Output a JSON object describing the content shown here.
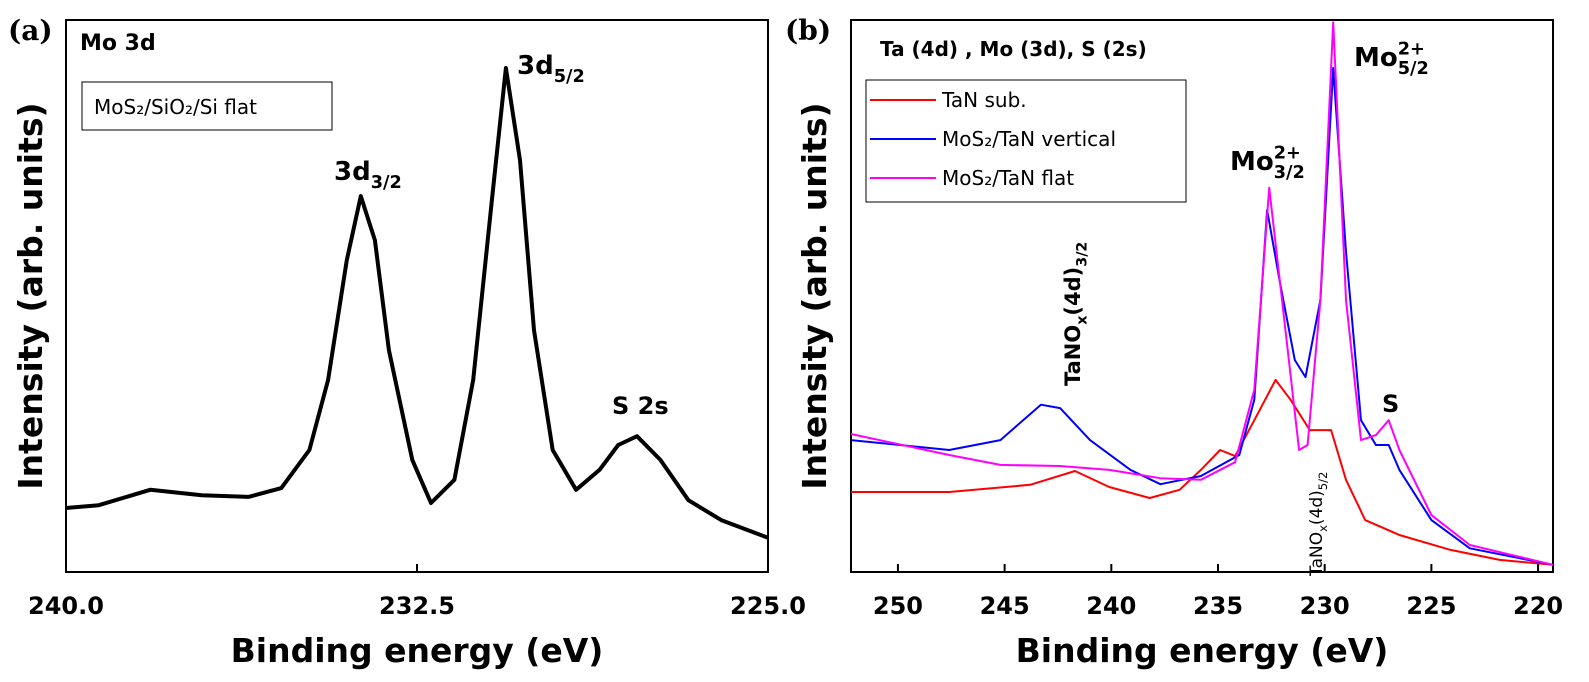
{
  "chart_data": [
    {
      "type": "line",
      "panel_label": "(a)",
      "title": "Mo 3d",
      "xlabel": "Binding energy (eV)",
      "ylabel": "Intensity (arb. units)",
      "xlim": [
        240,
        225
      ],
      "ylim": [
        0,
        100
      ],
      "xticks": [
        {
          "value": 240,
          "label": "240.0"
        },
        {
          "value": 232.5,
          "label": "232.5"
        },
        {
          "value": 225,
          "label": "225.0"
        }
      ],
      "x": [
        240,
        239.3,
        238.2,
        237.1,
        236.1,
        235.4,
        234.8,
        234.4,
        234.0,
        233.7,
        233.4,
        233.1,
        232.6,
        232.2,
        231.7,
        231.3,
        230.9,
        230.6,
        230.3,
        230.0,
        229.6,
        229.1,
        228.6,
        228.2,
        227.8,
        227.3,
        226.7,
        226.0,
        225.0
      ],
      "series": [
        {
          "name": "MoS₂/SiO₂/Si flat",
          "color": "#000000",
          "values": [
            11.6,
            12.1,
            14.9,
            13.9,
            13.6,
            15.2,
            22.1,
            34.8,
            56.5,
            68.1,
            60.1,
            40.2,
            20.3,
            12.5,
            16.7,
            34.8,
            67.4,
            91.3,
            74.6,
            43.8,
            22.1,
            14.9,
            18.5,
            23.0,
            24.6,
            20.3,
            13.0,
            9.4,
            6.2
          ]
        }
      ],
      "annotations": [
        {
          "parts": [
            {
              "text": "3d"
            },
            {
              "text": "3/2",
              "shift": "sub"
            }
          ]
        },
        {
          "parts": [
            {
              "text": "3d"
            },
            {
              "text": "5/2",
              "shift": "sub"
            }
          ]
        },
        {
          "parts": [
            {
              "text": "S 2s"
            }
          ]
        }
      ]
    },
    {
      "type": "line",
      "panel_label": "(b)",
      "title": "Ta (4d) , Mo (3d), S (2s)",
      "xlabel": "Binding energy (eV)",
      "ylabel": "Intensity (arb. units)",
      "xlim": [
        252.2,
        219.3
      ],
      "ylim": [
        0,
        100
      ],
      "xticks": [
        250,
        245,
        240,
        235,
        230,
        225,
        220
      ],
      "series": [
        {
          "name": "TaN sub.",
          "color": "#ff0000",
          "x": [
            252.2,
            247.6,
            243.8,
            241.7,
            240.1,
            238.2,
            236.8,
            235.8,
            234.9,
            234.2,
            233.3,
            232.3,
            231.6,
            230.7,
            229.7,
            229.0,
            228.1,
            226.5,
            224.1,
            221.8,
            219.3
          ],
          "values": [
            14.5,
            14.5,
            15.8,
            18.3,
            15.4,
            13.4,
            14.9,
            18.5,
            22.1,
            21.0,
            27.5,
            34.8,
            31.2,
            25.7,
            25.7,
            16.7,
            9.4,
            6.7,
            4.0,
            2.2,
            1.3
          ]
        },
        {
          "name": "MoS₂/TaN vertical",
          "color": "#0000ff",
          "x": [
            252.2,
            247.6,
            245.2,
            243.3,
            242.4,
            241.0,
            239.1,
            237.7,
            235.8,
            234.0,
            233.3,
            232.7,
            232.1,
            231.4,
            230.9,
            230.2,
            229.6,
            229.0,
            228.3,
            227.6,
            227.0,
            226.5,
            225.0,
            223.2,
            219.3
          ],
          "values": [
            23.9,
            22.1,
            23.9,
            30.3,
            29.7,
            23.9,
            18.5,
            15.9,
            17.4,
            21.2,
            31.2,
            65.6,
            52.5,
            38.4,
            35.3,
            49.3,
            91.3,
            58.0,
            27.5,
            23.0,
            23.0,
            18.5,
            9.4,
            4.3,
            1.3
          ]
        },
        {
          "name": "MoS₂/TaN flat",
          "color": "#ff00ff",
          "x": [
            252.2,
            247.6,
            245.2,
            242.4,
            240.1,
            237.7,
            235.8,
            234.2,
            233.3,
            232.6,
            232.0,
            231.2,
            230.8,
            230.2,
            229.6,
            229.0,
            228.3,
            227.6,
            227.0,
            226.5,
            225.0,
            223.2,
            219.3
          ],
          "values": [
            25.0,
            21.2,
            19.4,
            19.2,
            18.5,
            17.0,
            16.7,
            19.9,
            33.0,
            69.6,
            49.3,
            22.1,
            23.0,
            49.3,
            99.6,
            49.3,
            23.9,
            24.8,
            27.5,
            22.1,
            10.3,
            4.9,
            1.3
          ]
        }
      ],
      "annotations": [
        {
          "parts": [
            {
              "text": "TaNO"
            },
            {
              "text": "x",
              "shift": "sub"
            },
            {
              "text": "(4d)"
            },
            {
              "text": "3/2",
              "shift": "sub"
            }
          ]
        },
        {
          "parts": [
            {
              "text": "Mo"
            },
            {
              "text": "2+",
              "shift": "sup"
            },
            {
              "text": "3/2",
              "shift": "sub"
            }
          ]
        },
        {
          "parts": [
            {
              "text": "Mo"
            },
            {
              "text": "2+",
              "shift": "sup"
            },
            {
              "text": "5/2",
              "shift": "sub"
            }
          ]
        },
        {
          "parts": [
            {
              "text": "S"
            }
          ]
        },
        {
          "parts": [
            {
              "text": "TaNO"
            },
            {
              "text": "x",
              "shift": "sub"
            },
            {
              "text": "(4d)"
            },
            {
              "text": "5/2",
              "shift": "sub"
            }
          ]
        }
      ]
    }
  ]
}
